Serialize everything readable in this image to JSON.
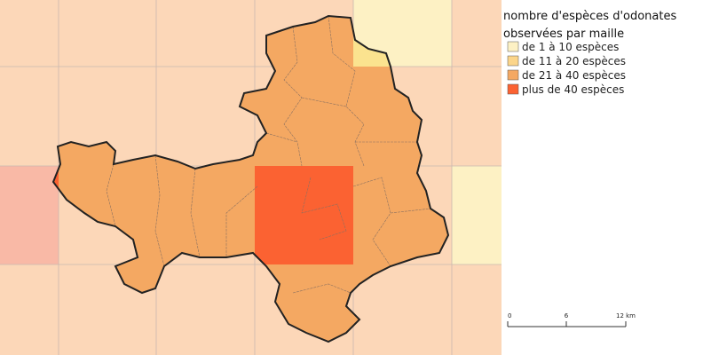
{
  "legend": {
    "title_lines": [
      "nombre d'espèces d'odonates",
      "observées par maille"
    ],
    "items": [
      {
        "label": "de 1 à 10 espèces",
        "color": "#fdf1c4"
      },
      {
        "label": "de 11 à 20 espèces",
        "color": "#fbd58a"
      },
      {
        "label": "de 21 à 40 espèces",
        "color": "#f4a862"
      },
      {
        "label": "plus de 40 espèces",
        "color": "#fb6232"
      }
    ]
  },
  "scale_bar": {
    "labels": [
      "0",
      "6",
      "12 km"
    ]
  }
}
